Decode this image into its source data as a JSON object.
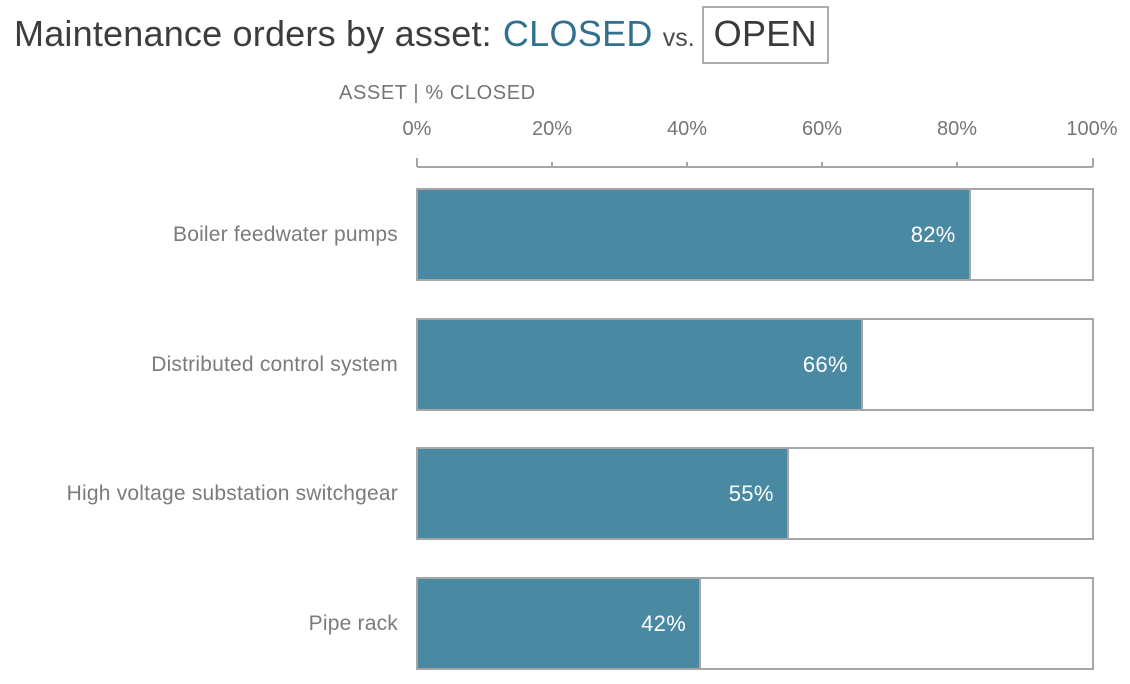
{
  "title": {
    "prefix": "Maintenance orders by asset:",
    "closed_word": "CLOSED",
    "vs_word": "vs.",
    "open_word": "OPEN"
  },
  "axis": {
    "header": "ASSET | % CLOSED",
    "ticks": [
      "0%",
      "20%",
      "40%",
      "60%",
      "80%",
      "100%"
    ]
  },
  "chart_data": {
    "type": "bar",
    "orientation": "horizontal",
    "stacked": true,
    "title": "Maintenance orders by asset: CLOSED vs. OPEN",
    "axis_header": "ASSET | % CLOSED",
    "x_ticks": [
      "0%",
      "20%",
      "40%",
      "60%",
      "80%",
      "100%"
    ],
    "xlim": [
      0,
      100
    ],
    "grid": false,
    "legend_position": "in-title",
    "categories": [
      "Boiler feedwater pumps",
      "Distributed control system",
      "High voltage substation switchgear",
      "Pipe rack"
    ],
    "series": [
      {
        "name": "CLOSED",
        "values": [
          82,
          66,
          55,
          42
        ]
      },
      {
        "name": "OPEN",
        "values": [
          18,
          34,
          45,
          58
        ]
      }
    ],
    "bars": [
      {
        "label": "Boiler feedwater pumps",
        "closed_pct": 82,
        "value_label": "82%"
      },
      {
        "label": "Distributed control system",
        "closed_pct": 66,
        "value_label": "66%"
      },
      {
        "label": "High voltage substation switchgear",
        "closed_pct": 55,
        "value_label": "55%"
      },
      {
        "label": "Pipe rack",
        "closed_pct": 42,
        "value_label": "42%"
      }
    ],
    "colors": {
      "closed_fill": "#4a89a2",
      "open_fill": "#ffffff",
      "bar_border": "#a6a6a6",
      "title_closed_text": "#31708f",
      "title_dark_text": "#3d3d3d",
      "axis_text": "#757575",
      "category_text": "#7b7b7b",
      "value_text": "#ffffff"
    }
  }
}
